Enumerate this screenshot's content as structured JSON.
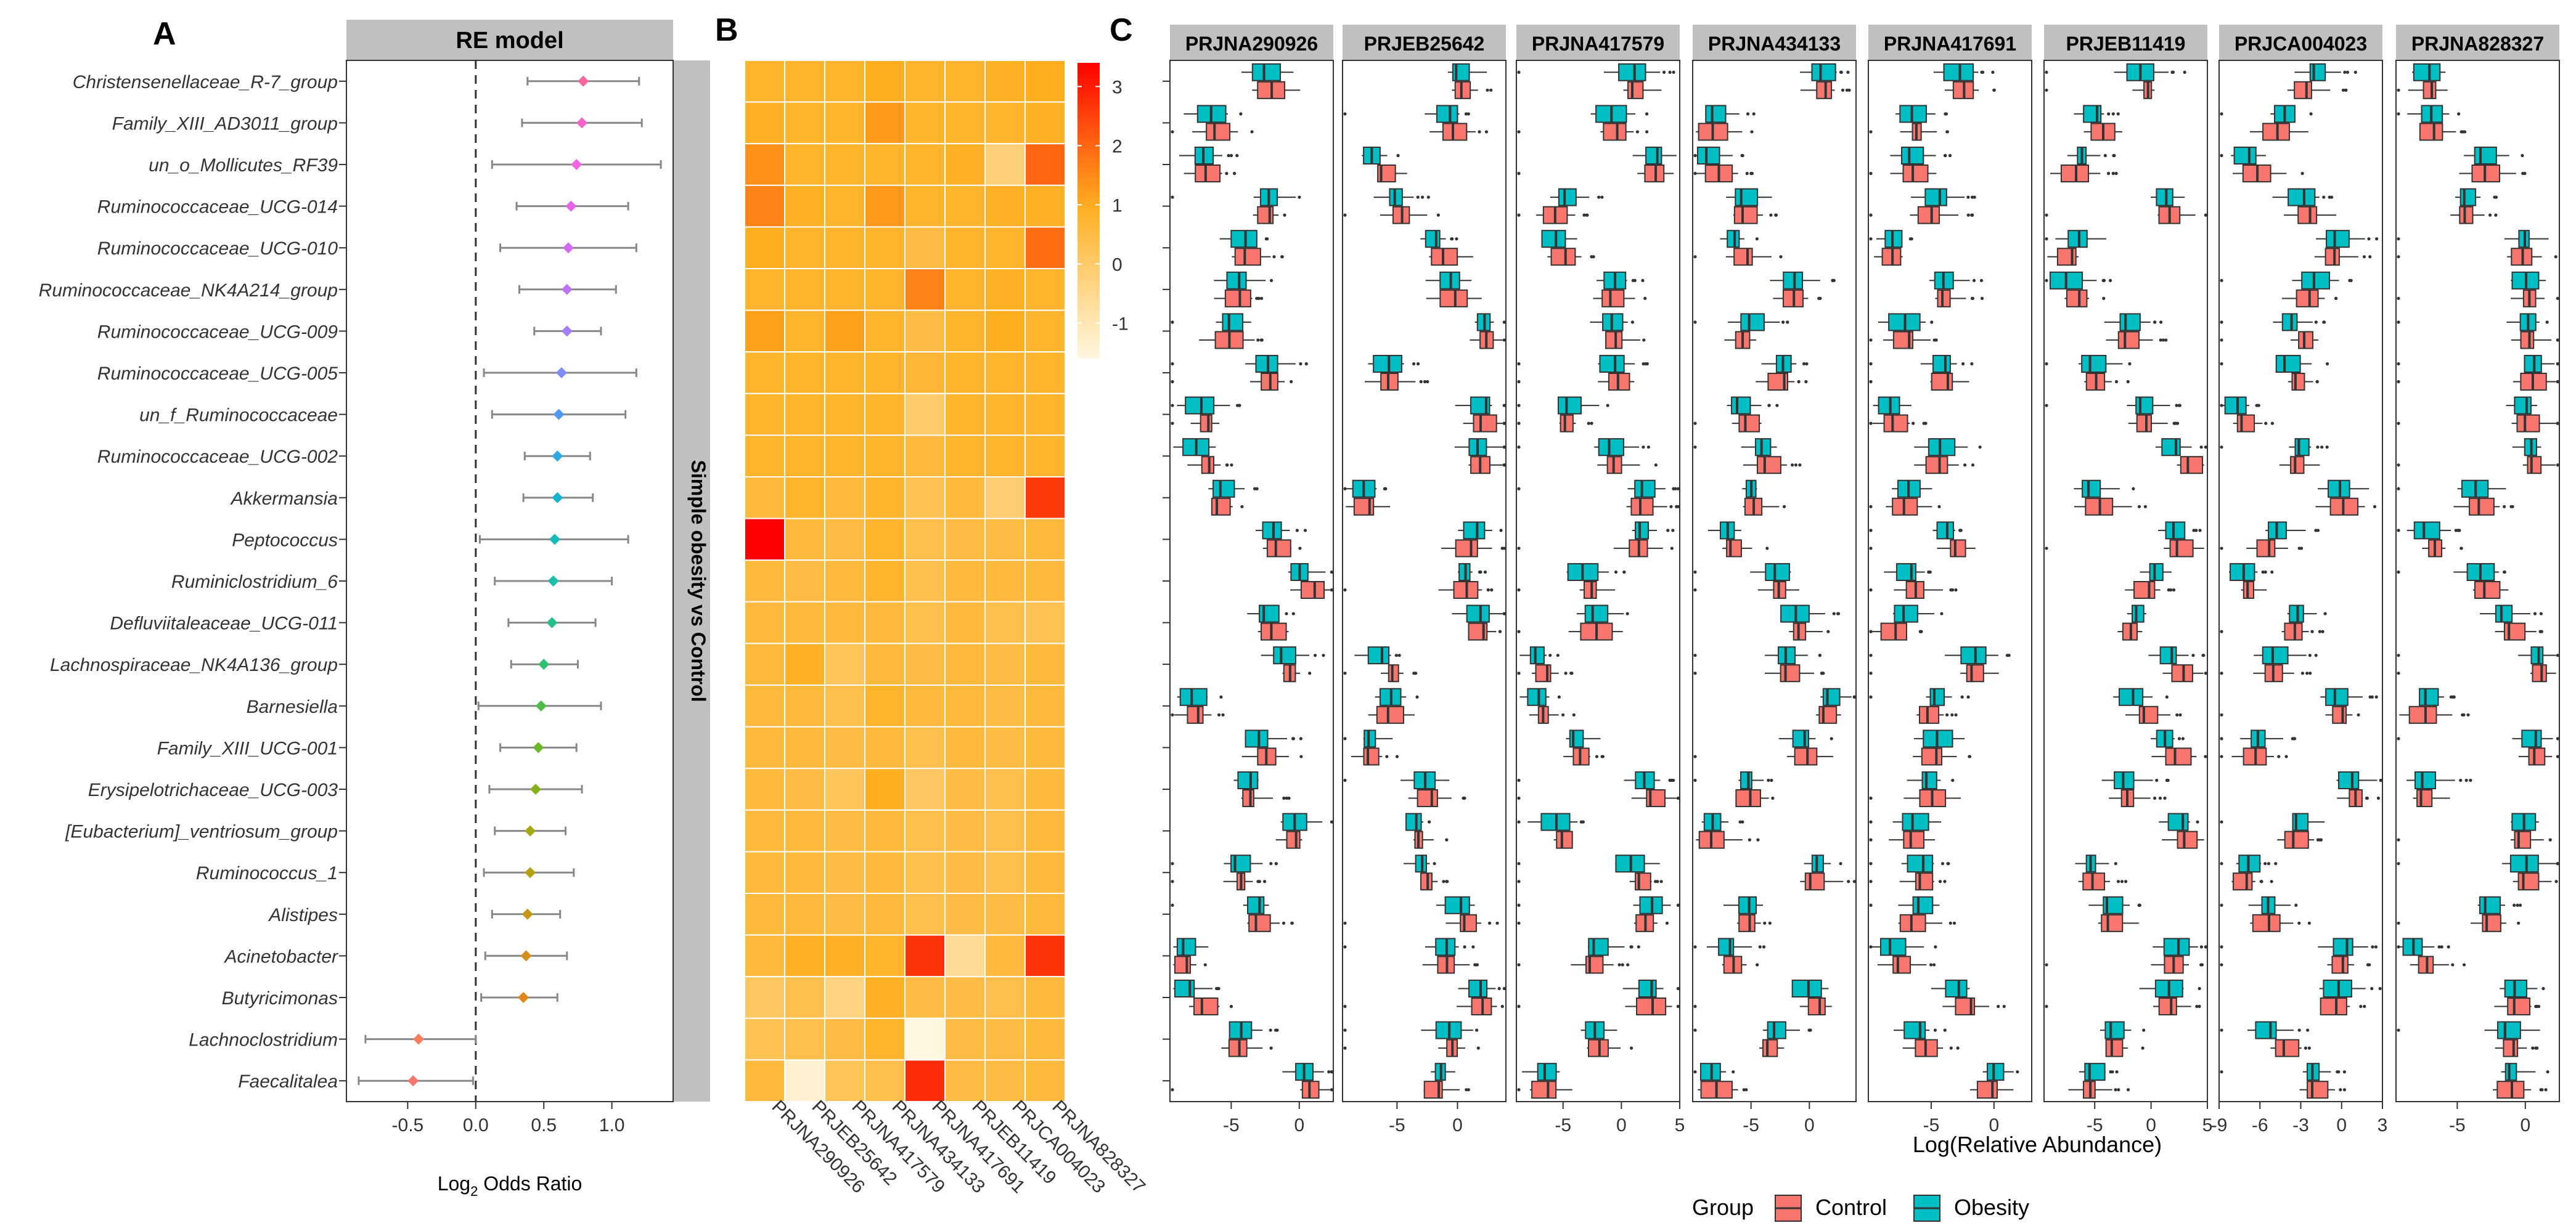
{
  "figure": {
    "panel_a_letter": "A",
    "panel_b_letter": "B",
    "panel_c_letter": "C"
  },
  "colors": {
    "strip_bg": "#c0c0c0",
    "control": "#f8766d",
    "obesity": "#00bfc4",
    "heat_low": "#fff7e0",
    "heat_mid": "#ffae1f",
    "heat_high": "#ff0000"
  },
  "chart_data": [
    {
      "type": "scatter",
      "panel": "A",
      "title": "RE model",
      "strip_right": "Simple obesity vs Control",
      "xlabel": "Log2 Odds Ratio",
      "xlabel_main": "Log",
      "xlabel_sub": "2",
      "xlabel_rest": " Odds Ratio",
      "xlim": [
        -0.95,
        1.45
      ],
      "xticks": [
        -0.5,
        0,
        0.5,
        1
      ],
      "xtick_labels": [
        "-0.5",
        "0.0",
        "0.5",
        "1.0"
      ],
      "reference_line": 0,
      "taxa": [
        "Christensenellaceae_R-7_group",
        "Family_XIII_AD3011_group",
        "un_o_Mollicutes_RF39",
        "Ruminococcaceae_UCG-014",
        "Ruminococcaceae_UCG-010",
        "Ruminococcaceae_NK4A214_group",
        "Ruminococcaceae_UCG-009",
        "Ruminococcaceae_UCG-005",
        "un_f_Ruminococcaceae",
        "Ruminococcaceae_UCG-002",
        "Akkermansia",
        "Peptococcus",
        "Ruminiclostridium_6",
        "Defluviitaleaceae_UCG-011",
        "Lachnospiraceae_NK4A136_group",
        "Barnesiella",
        "Family_XIII_UCG-001",
        "Erysipelotrichaceae_UCG-003",
        "[Eubacterium]_ventriosum_group",
        "Ruminococcus_1",
        "Alistipes",
        "Acinetobacter",
        "Butyricimonas",
        "Lachnoclostridium",
        "Faecalitalea"
      ],
      "estimate": [
        0.79,
        0.78,
        0.74,
        0.7,
        0.68,
        0.67,
        0.67,
        0.63,
        0.61,
        0.6,
        0.6,
        0.58,
        0.57,
        0.56,
        0.5,
        0.48,
        0.46,
        0.44,
        0.4,
        0.4,
        0.38,
        0.37,
        0.35,
        -0.42,
        -0.46
      ],
      "ci_low": [
        0.38,
        0.34,
        0.12,
        0.3,
        0.18,
        0.32,
        0.43,
        0.06,
        0.12,
        0.36,
        0.35,
        0.03,
        0.14,
        0.24,
        0.26,
        0.02,
        0.18,
        0.1,
        0.14,
        0.06,
        0.12,
        0.07,
        0.04,
        -0.81,
        -0.86
      ],
      "ci_high": [
        1.2,
        1.22,
        1.36,
        1.12,
        1.18,
        1.03,
        0.92,
        1.18,
        1.1,
        0.84,
        0.86,
        1.12,
        1.0,
        0.88,
        0.75,
        0.92,
        0.74,
        0.78,
        0.66,
        0.72,
        0.62,
        0.67,
        0.6,
        0.0,
        -0.02
      ],
      "point_colors": [
        "#f8669f",
        "#f565c7",
        "#f264e2",
        "#e566ea",
        "#d16cf2",
        "#bf74f7",
        "#a27ff9",
        "#7f8bf6",
        "#5298ee",
        "#2ea8e0",
        "#18b2d0",
        "#18b9bd",
        "#1ebda7",
        "#28bf8c",
        "#33bf70",
        "#4fbc47",
        "#6cb72b",
        "#87b11a",
        "#a2a816",
        "#b6a016",
        "#c69818",
        "#d3901a",
        "#e0871c",
        "#ff7d5c",
        "#f5766a"
      ]
    },
    {
      "type": "heatmap",
      "panel": "B",
      "columns": [
        "PRJNA290926",
        "PRJEB25642",
        "PRJNA417579",
        "PRJNA434133",
        "PRJNA417691",
        "PRJEB11419",
        "PRJCA004023",
        "PRJNA828327"
      ],
      "rows": [
        "Christensenellaceae_R-7_group",
        "Family_XIII_AD3011_group",
        "un_o_Mollicutes_RF39",
        "Ruminococcaceae_UCG-014",
        "Ruminococcaceae_UCG-010",
        "Ruminococcaceae_NK4A214_group",
        "Ruminococcaceae_UCG-009",
        "Ruminococcaceae_UCG-005",
        "un_f_Ruminococcaceae",
        "Ruminococcaceae_UCG-002",
        "Akkermansia",
        "Peptococcus",
        "Ruminiclostridium_6",
        "Defluviitaleaceae_UCG-011",
        "Lachnospiraceae_NK4A136_group",
        "Barnesiella",
        "Family_XIII_UCG-001",
        "Erysipelotrichaceae_UCG-003",
        "[Eubacterium]_ventriosum_group",
        "Ruminococcus_1",
        "Alistipes",
        "Acinetobacter",
        "Butyricimonas",
        "Lachnoclostridium",
        "Faecalitalea"
      ],
      "values": [
        [
          0.8,
          0.8,
          0.8,
          1.0,
          0.8,
          0.8,
          0.9,
          1.0
        ],
        [
          0.9,
          0.8,
          0.8,
          1.3,
          0.8,
          0.8,
          0.8,
          0.9
        ],
        [
          1.4,
          0.8,
          0.8,
          0.8,
          0.8,
          0.9,
          -0.2,
          2.0
        ],
        [
          1.6,
          0.9,
          0.8,
          1.3,
          0.8,
          0.8,
          0.9,
          0.9
        ],
        [
          1.0,
          0.8,
          0.8,
          0.8,
          0.5,
          0.8,
          0.8,
          1.9
        ],
        [
          0.8,
          0.8,
          0.8,
          0.8,
          1.6,
          0.8,
          0.9,
          0.8
        ],
        [
          1.2,
          0.8,
          1.2,
          0.8,
          0.5,
          0.8,
          1.0,
          0.8
        ],
        [
          0.8,
          0.8,
          0.8,
          0.8,
          0.7,
          0.8,
          0.8,
          0.8
        ],
        [
          0.8,
          0.8,
          0.8,
          0.8,
          0.0,
          0.8,
          0.8,
          0.8
        ],
        [
          0.8,
          0.8,
          0.8,
          0.8,
          0.6,
          0.8,
          0.8,
          0.8
        ],
        [
          0.6,
          0.8,
          0.6,
          0.8,
          0.3,
          0.6,
          -0.1,
          2.6
        ],
        [
          3.4,
          0.6,
          0.5,
          0.8,
          0.4,
          0.5,
          0.5,
          0.6
        ],
        [
          0.6,
          0.5,
          0.6,
          0.8,
          0.4,
          0.6,
          0.6,
          0.6
        ],
        [
          0.6,
          0.6,
          0.6,
          0.6,
          0.4,
          0.6,
          0.4,
          0.3
        ],
        [
          0.6,
          0.9,
          0.2,
          0.6,
          0.5,
          0.6,
          0.5,
          0.6
        ],
        [
          0.6,
          0.6,
          0.4,
          0.8,
          0.6,
          0.6,
          0.5,
          0.6
        ],
        [
          0.6,
          0.6,
          0.5,
          0.6,
          0.4,
          0.6,
          0.5,
          0.6
        ],
        [
          0.6,
          0.5,
          0.2,
          1.0,
          0.1,
          0.5,
          0.4,
          0.6
        ],
        [
          0.6,
          0.6,
          0.5,
          0.6,
          0.4,
          0.5,
          0.4,
          0.6
        ],
        [
          0.6,
          0.6,
          0.5,
          0.6,
          0.4,
          0.5,
          0.4,
          0.6
        ],
        [
          0.6,
          0.6,
          0.5,
          0.6,
          0.4,
          0.5,
          0.5,
          0.6
        ],
        [
          0.6,
          0.9,
          0.9,
          0.8,
          2.7,
          -0.6,
          0.6,
          2.7
        ],
        [
          0.1,
          0.4,
          -0.3,
          0.9,
          0.5,
          0.5,
          0.4,
          0.6
        ],
        [
          0.3,
          0.4,
          0.5,
          0.8,
          -1.6,
          0.5,
          0.5,
          0.6
        ],
        [
          0.6,
          -1.4,
          0.2,
          0.4,
          2.8,
          0.5,
          0.5,
          0.6
        ]
      ],
      "legend_ticks": [
        3,
        2,
        1,
        0,
        -1
      ],
      "legend_labels": [
        "3",
        "2",
        "1",
        "0",
        "-1"
      ],
      "value_range": [
        -1.6,
        3.4
      ]
    },
    {
      "type": "box",
      "panel": "C",
      "xlabel": "Log(Relative Abundance)",
      "facets": [
        {
          "name": "PRJNA290926",
          "xlim": [
            -9.5,
            2.5
          ],
          "xticks": [
            -5,
            0
          ],
          "xtick_labels": [
            "-5",
            "0"
          ]
        },
        {
          "name": "PRJEB25642",
          "xlim": [
            -9.5,
            4
          ],
          "xticks": [
            -5,
            0
          ],
          "xtick_labels": [
            "-5",
            "0"
          ]
        },
        {
          "name": "PRJNA417579",
          "xlim": [
            -9,
            5
          ],
          "xticks": [
            -5,
            0,
            5
          ],
          "xtick_labels": [
            "-5",
            "0",
            "5"
          ]
        },
        {
          "name": "PRJNA434133",
          "xlim": [
            -10,
            4
          ],
          "xticks": [
            -5,
            0
          ],
          "xtick_labels": [
            "-5",
            "0"
          ]
        },
        {
          "name": "PRJNA417691",
          "xlim": [
            -10,
            3
          ],
          "xticks": [
            -5,
            0
          ],
          "xtick_labels": [
            "-5",
            "0"
          ]
        },
        {
          "name": "PRJEB11419",
          "xlim": [
            -9.5,
            5
          ],
          "xticks": [
            -5,
            0,
            5
          ],
          "xtick_labels": [
            "-5",
            "0",
            "5"
          ]
        },
        {
          "name": "PRJCA004023",
          "xlim": [
            -9,
            3
          ],
          "xticks": [
            -9,
            -6,
            -3,
            0,
            3
          ],
          "xtick_labels": [
            "-9",
            "-6",
            "-3",
            "0",
            "3"
          ]
        },
        {
          "name": "PRJNA828327",
          "xlim": [
            -9.5,
            2.5
          ],
          "xticks": [
            -5,
            0
          ],
          "xtick_labels": [
            "-5",
            "0"
          ]
        }
      ],
      "legend_title": "Group",
      "groups": [
        "Control",
        "Obesity"
      ]
    }
  ]
}
